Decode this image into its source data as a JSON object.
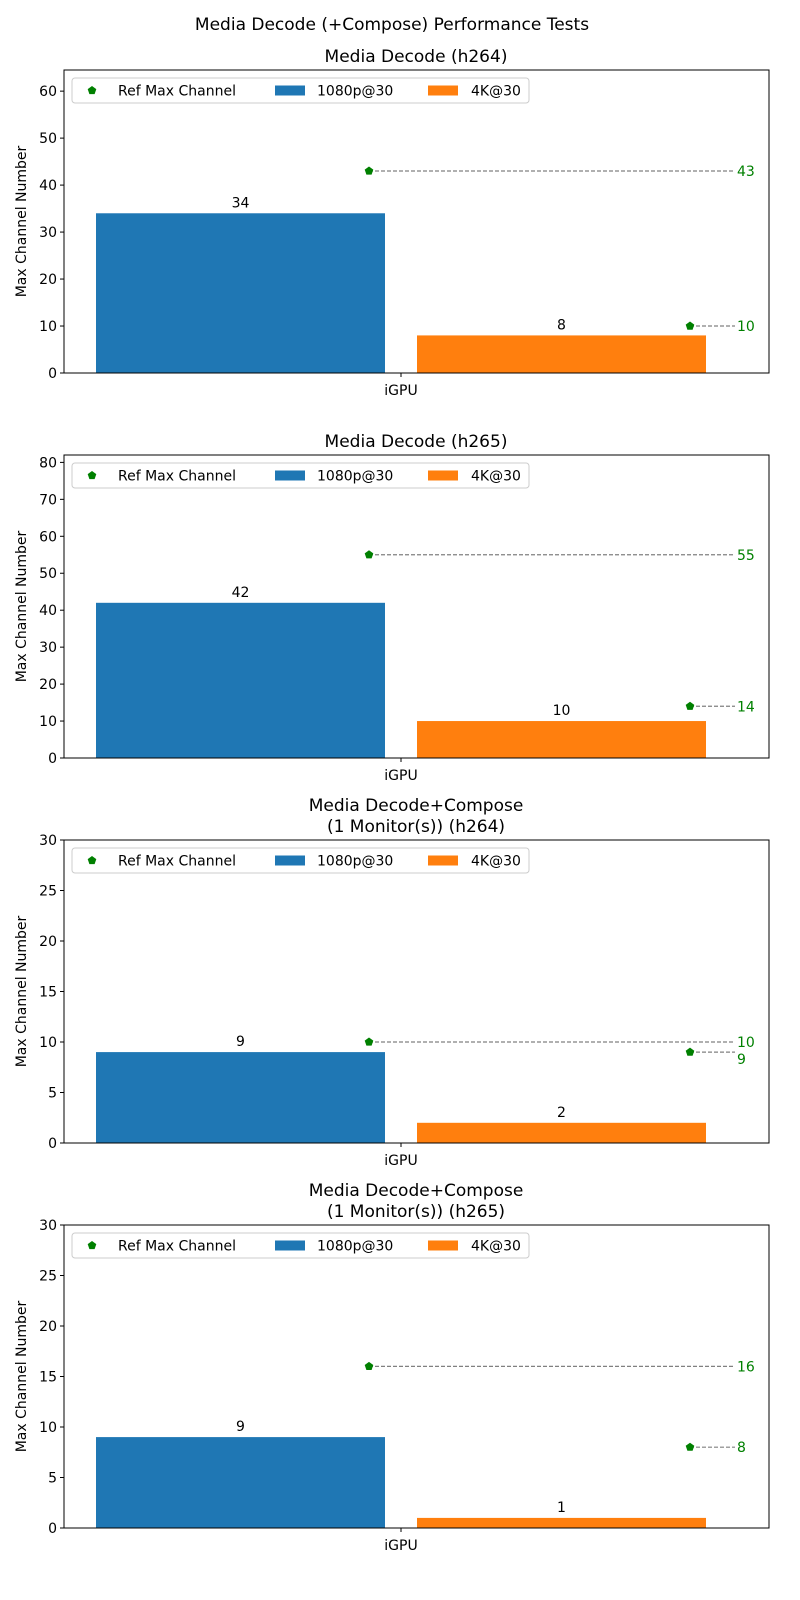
{
  "suptitle": "Media Decode (+Compose) Performance Tests",
  "chart_data": [
    {
      "type": "bar",
      "title": [
        "Media Decode (h264)"
      ],
      "xlabel": "",
      "ylabel": "Max Channel Number",
      "categories": [
        "iGPU"
      ],
      "ylim": [
        0,
        64.5
      ],
      "yticks": [
        0,
        10,
        20,
        30,
        40,
        50,
        60
      ],
      "series": [
        {
          "name": "1080p@30",
          "values": [
            34
          ],
          "ref": 43,
          "color": "#1f77b4"
        },
        {
          "name": "4K@30",
          "values": [
            8
          ],
          "ref": 10,
          "color": "#ff7f0e"
        }
      ],
      "ref_name": "Ref Max Channel",
      "ref_color": "#008000",
      "legend": "top-left",
      "grid": false
    },
    {
      "type": "bar",
      "title": [
        "Media Decode (h265)"
      ],
      "xlabel": "",
      "ylabel": "Max Channel Number",
      "categories": [
        "iGPU"
      ],
      "ylim": [
        0,
        82
      ],
      "yticks": [
        0,
        10,
        20,
        30,
        40,
        50,
        60,
        70,
        80
      ],
      "series": [
        {
          "name": "1080p@30",
          "values": [
            42
          ],
          "ref": 55,
          "color": "#1f77b4"
        },
        {
          "name": "4K@30",
          "values": [
            10
          ],
          "ref": 14,
          "color": "#ff7f0e"
        }
      ],
      "ref_name": "Ref Max Channel",
      "ref_color": "#008000",
      "legend": "top-left",
      "grid": false
    },
    {
      "type": "bar",
      "title": [
        "Media Decode+Compose",
        "(1 Monitor(s)) (h264)"
      ],
      "xlabel": "",
      "ylabel": "Max Channel Number",
      "categories": [
        "iGPU"
      ],
      "ylim": [
        0,
        30
      ],
      "yticks": [
        0,
        5,
        10,
        15,
        20,
        25,
        30
      ],
      "series": [
        {
          "name": "1080p@30",
          "values": [
            9
          ],
          "ref": 10,
          "color": "#1f77b4"
        },
        {
          "name": "4K@30",
          "values": [
            2
          ],
          "ref": 9,
          "color": "#ff7f0e"
        }
      ],
      "ref_name": "Ref Max Channel",
      "ref_color": "#008000",
      "legend": "top-left",
      "grid": false
    },
    {
      "type": "bar",
      "title": [
        "Media Decode+Compose",
        "(1 Monitor(s)) (h265)"
      ],
      "xlabel": "",
      "ylabel": "Max Channel Number",
      "categories": [
        "iGPU"
      ],
      "ylim": [
        0,
        30
      ],
      "yticks": [
        0,
        5,
        10,
        15,
        20,
        25,
        30
      ],
      "series": [
        {
          "name": "1080p@30",
          "values": [
            9
          ],
          "ref": 16,
          "color": "#1f77b4"
        },
        {
          "name": "4K@30",
          "values": [
            1
          ],
          "ref": 8,
          "color": "#ff7f0e"
        }
      ],
      "ref_name": "Ref Max Channel",
      "ref_color": "#008000",
      "legend": "top-left",
      "grid": false
    }
  ]
}
